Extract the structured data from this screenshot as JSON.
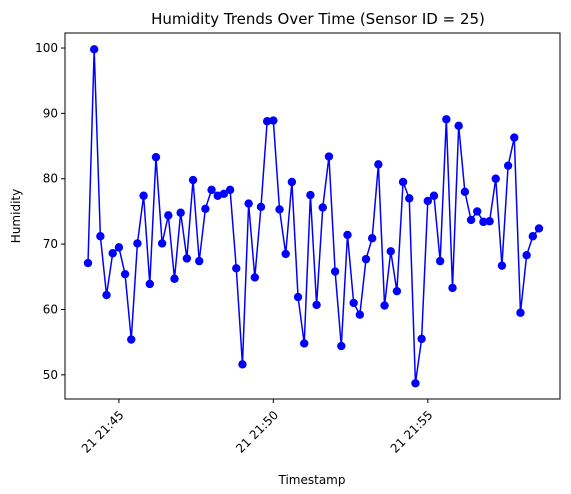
{
  "chart_data": {
    "type": "line",
    "title": "Humidity Trends Over Time (Sensor ID = 25)",
    "xlabel": "Timestamp",
    "ylabel": "Humidity",
    "x_unit": "minutes",
    "x_tick_values": [
      45,
      50,
      55
    ],
    "x_tick_labels": [
      "21 21:45",
      "21 21:50",
      "21 21:55"
    ],
    "y_ticks": [
      50,
      60,
      70,
      80,
      90,
      100
    ],
    "xlim": [
      43.45,
      56.5
    ],
    "ylim": [
      46.3,
      102.3
    ],
    "grid": false,
    "series": [
      {
        "color": "#0000ff",
        "marker": "circle",
        "points": [
          [
            44.0,
            67.1
          ],
          [
            44.2,
            99.8
          ],
          [
            44.4,
            71.2
          ],
          [
            44.6,
            62.2
          ],
          [
            44.8,
            68.6
          ],
          [
            45.0,
            69.5
          ],
          [
            45.2,
            65.4
          ],
          [
            45.4,
            55.4
          ],
          [
            45.6,
            70.1
          ],
          [
            45.8,
            77.4
          ],
          [
            46.0,
            63.9
          ],
          [
            46.2,
            83.3
          ],
          [
            46.4,
            70.1
          ],
          [
            46.6,
            74.4
          ],
          [
            46.8,
            64.7
          ],
          [
            47.0,
            74.8
          ],
          [
            47.2,
            67.8
          ],
          [
            47.4,
            79.8
          ],
          [
            47.6,
            67.4
          ],
          [
            47.8,
            75.4
          ],
          [
            48.0,
            78.3
          ],
          [
            48.2,
            77.4
          ],
          [
            48.4,
            77.7
          ],
          [
            48.6,
            78.3
          ],
          [
            48.8,
            66.3
          ],
          [
            49.0,
            51.6
          ],
          [
            49.2,
            76.2
          ],
          [
            49.4,
            64.9
          ],
          [
            49.6,
            75.7
          ],
          [
            49.8,
            88.8
          ],
          [
            50.0,
            88.9
          ],
          [
            50.2,
            75.3
          ],
          [
            50.4,
            68.5
          ],
          [
            50.6,
            79.5
          ],
          [
            50.8,
            61.9
          ],
          [
            51.0,
            54.8
          ],
          [
            51.2,
            77.5
          ],
          [
            51.4,
            60.7
          ],
          [
            51.6,
            75.6
          ],
          [
            51.8,
            83.4
          ],
          [
            52.0,
            65.8
          ],
          [
            52.2,
            54.4
          ],
          [
            52.4,
            71.4
          ],
          [
            52.6,
            61.0
          ],
          [
            52.8,
            59.2
          ],
          [
            53.0,
            67.7
          ],
          [
            53.2,
            70.9
          ],
          [
            53.4,
            82.2
          ],
          [
            53.6,
            60.6
          ],
          [
            53.8,
            68.9
          ],
          [
            54.0,
            62.8
          ],
          [
            54.2,
            79.5
          ],
          [
            54.4,
            77.0
          ],
          [
            54.6,
            48.7
          ],
          [
            54.8,
            55.5
          ],
          [
            55.0,
            76.6
          ],
          [
            55.2,
            77.4
          ],
          [
            55.4,
            67.4
          ],
          [
            55.6,
            89.1
          ],
          [
            55.8,
            63.3
          ],
          [
            56.0,
            88.1
          ],
          [
            56.2,
            78.0
          ],
          [
            56.4,
            73.7
          ],
          [
            56.6,
            75.0
          ],
          [
            56.8,
            73.4
          ],
          [
            57.0,
            73.5
          ],
          [
            57.2,
            80.0
          ],
          [
            57.4,
            66.7
          ],
          [
            57.6,
            82.0
          ],
          [
            57.8,
            86.3
          ],
          [
            58.0,
            59.5
          ],
          [
            58.2,
            68.3
          ],
          [
            58.4,
            71.2
          ],
          [
            58.6,
            72.4
          ]
        ]
      }
    ]
  }
}
